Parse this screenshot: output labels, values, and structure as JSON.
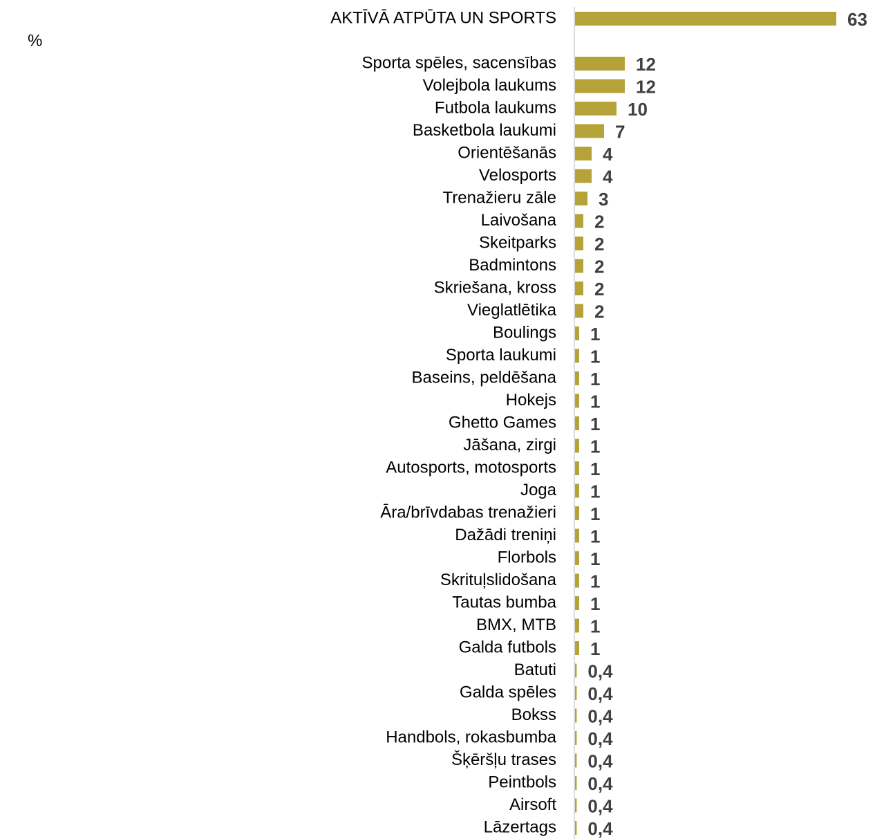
{
  "chart_data": {
    "type": "hbar",
    "unit_label": "%",
    "color": "#b5a33a",
    "categories": [
      "AKTĪVĀ ATPŪTA UN SPORTS",
      null,
      "Sporta spēles, sacensības",
      "Volejbola laukums",
      "Futbola laukums",
      "Basketbola laukumi",
      "Orientēšanās",
      "Velosports",
      "Trenažieru zāle",
      "Laivošana",
      "Skeitparks",
      "Badmintons",
      "Skriešana, kross",
      "Vieglatlētika",
      "Boulings",
      "Sporta laukumi",
      "Baseins, peldēšana",
      "Hokejs",
      "Ghetto Games",
      "Jāšana, zirgi",
      "Autosports, motosports",
      "Joga",
      "Āra/brīvdabas trenažieri",
      "Dažādi treniņi",
      "Florbols",
      "Skrituļslidošana",
      "Tautas bumba",
      "BMX, MTB",
      "Galda futbols",
      "Batuti",
      "Galda spēles",
      "Bokss",
      "Handbols, rokasbumba",
      "Šķēršļu trases",
      "Peintbols",
      "Airsoft",
      "Lāzertags"
    ],
    "values": [
      63,
      null,
      12,
      12,
      10,
      7,
      4,
      4,
      3,
      2,
      2,
      2,
      2,
      2,
      1,
      1,
      1,
      1,
      1,
      1,
      1,
      1,
      1,
      1,
      1,
      1,
      1,
      1,
      1,
      0.4,
      0.4,
      0.4,
      0.4,
      0.4,
      0.4,
      0.4,
      0.4
    ],
    "value_labels": [
      "63",
      null,
      "12",
      "12",
      "10",
      "7",
      "4",
      "4",
      "3",
      "2",
      "2",
      "2",
      "2",
      "2",
      "1",
      "1",
      "1",
      "1",
      "1",
      "1",
      "1",
      "1",
      "1",
      "1",
      "1",
      "1",
      "1",
      "1",
      "1",
      "0,4",
      "0,4",
      "0,4",
      "0,4",
      "0,4",
      "0,4",
      "0,4",
      "0,4"
    ],
    "xlim": [
      0,
      63
    ]
  }
}
